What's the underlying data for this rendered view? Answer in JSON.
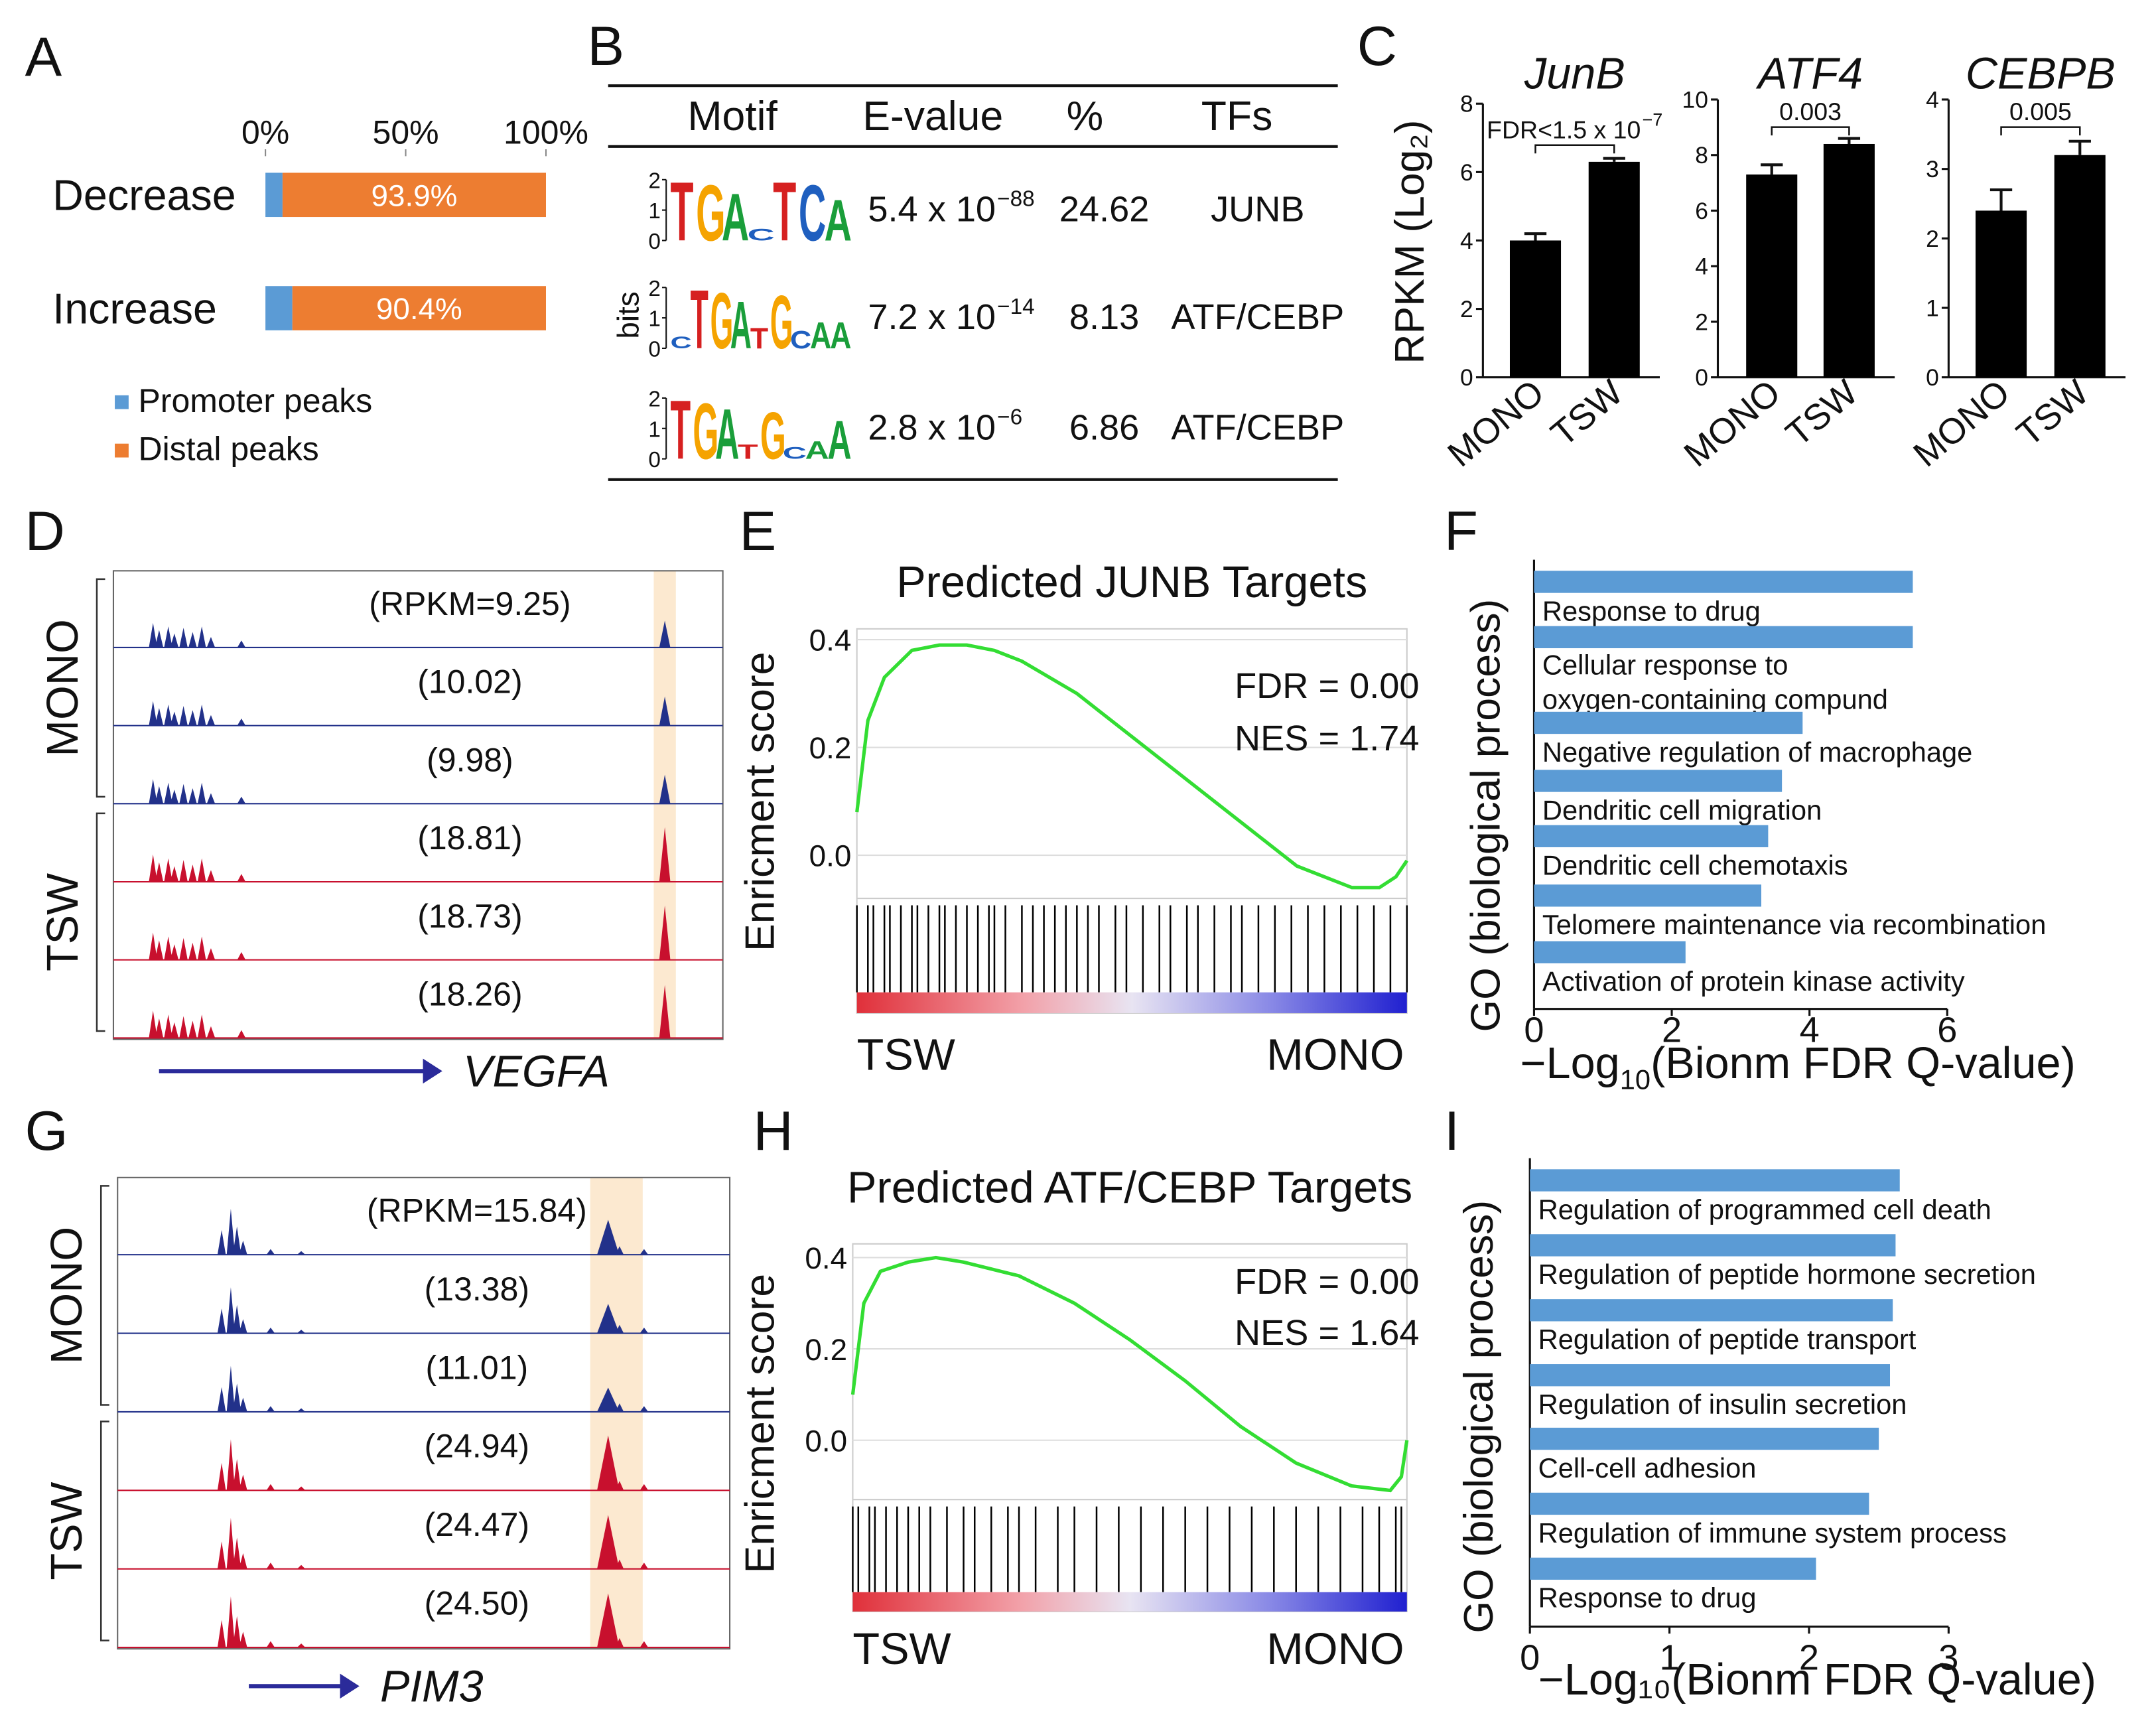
{
  "chart_data": [
    {
      "type": "stacked_barh",
      "panel": "A",
      "categories": [
        "Decrease",
        "Increase"
      ],
      "series": [
        {
          "name": "Promoter peaks",
          "color": "#5b9bd5",
          "values": [
            6.1,
            9.6
          ]
        },
        {
          "name": "Distal peaks",
          "color": "#ed7d31",
          "values": [
            93.9,
            90.4
          ],
          "value_labels": [
            "93.9%",
            "90.4%"
          ]
        }
      ],
      "xlim": [
        0,
        100
      ],
      "xticks": [
        {
          "value": 0,
          "label": "0%"
        },
        {
          "value": 50,
          "label": "50%"
        },
        {
          "value": 100,
          "label": "100%"
        }
      ]
    },
    {
      "type": "table",
      "panel": "B",
      "columns": [
        "Motif",
        "E-value",
        "%",
        "TFs"
      ],
      "logo_axis_label": "bits",
      "logo_ticks": [
        0,
        1,
        2
      ],
      "rows": [
        {
          "logo": [
            "T",
            "G",
            "A",
            "C",
            "T",
            "C",
            "A"
          ],
          "logo_bits": [
            2,
            1.9,
            1.6,
            0.4,
            2,
            1.9,
            1.4
          ],
          "evalue": "5.4 x 10",
          "evalue_exp": "−88",
          "percent": 24.62,
          "tf": "JUNB"
        },
        {
          "logo": [
            "C",
            "T",
            "G",
            "A",
            "T",
            "G",
            "C",
            "A",
            "A"
          ],
          "logo_bits": [
            0.4,
            2,
            1.9,
            1.6,
            0.7,
            1.8,
            0.6,
            0.9,
            0.9
          ],
          "evalue": "7.2 x 10",
          "evalue_exp": "−14",
          "percent": 8.13,
          "tf": "ATF/CEBP"
        },
        {
          "logo": [
            "T",
            "G",
            "A",
            "T",
            "G",
            "C",
            "A",
            "A"
          ],
          "logo_bits": [
            2,
            1.9,
            1.7,
            0.5,
            1.6,
            0.4,
            0.6,
            1.3
          ],
          "evalue": "2.8 x 10",
          "evalue_exp": "−6",
          "percent": 6.86,
          "tf": "ATF/CEBP"
        }
      ]
    },
    {
      "type": "bar",
      "panel": "C",
      "title": "JunB",
      "ylabel": "RPKM (Log₂)",
      "categories": [
        "MONO",
        "TSW"
      ],
      "values": [
        4.0,
        6.3
      ],
      "errors": [
        0.2,
        0.1
      ],
      "color": "#000000",
      "ylim": [
        0,
        8
      ],
      "yticks": [
        0,
        2,
        4,
        6,
        8
      ],
      "annotation": "FDR<1.5 x 10",
      "annotation_exp": "−7"
    },
    {
      "type": "bar",
      "title": "ATF4",
      "categories": [
        "MONO",
        "TSW"
      ],
      "values": [
        7.3,
        8.4
      ],
      "errors": [
        0.35,
        0.2
      ],
      "color": "#000000",
      "ylim": [
        0,
        10
      ],
      "yticks": [
        0,
        2,
        4,
        6,
        8,
        10
      ],
      "annotation": "0.003"
    },
    {
      "type": "bar",
      "title": "CEBPB",
      "categories": [
        "MONO",
        "TSW"
      ],
      "values": [
        2.4,
        3.2
      ],
      "errors": [
        0.3,
        0.2
      ],
      "color": "#000000",
      "ylim": [
        0,
        4
      ],
      "yticks": [
        0,
        1,
        2,
        3,
        4
      ],
      "annotation": "0.005"
    },
    {
      "type": "tracks",
      "panel": "D",
      "gene": "VEGFA",
      "groups": [
        {
          "name": "MONO",
          "color": "#22318a"
        },
        {
          "name": "TSW",
          "color": "#c8102e"
        }
      ],
      "track_groups": [
        0,
        0,
        0,
        1,
        1,
        1
      ],
      "values": [
        9.25,
        10.02,
        9.98,
        18.81,
        18.73,
        18.26
      ],
      "value_labels": [
        "(RPKM=9.25)",
        "(10.02)",
        "(9.98)",
        "(18.81)",
        "(18.73)",
        "(18.26)"
      ]
    },
    {
      "type": "gsea",
      "panel": "E",
      "title": "Predicted JUNB Targets",
      "ylabel": "Enricment score",
      "color": "#33dd33",
      "x": [
        0,
        0.02,
        0.05,
        0.1,
        0.15,
        0.2,
        0.25,
        0.3,
        0.4,
        0.5,
        0.6,
        0.7,
        0.75,
        0.8,
        0.85,
        0.9,
        0.95,
        0.98,
        1
      ],
      "values": [
        0.08,
        0.25,
        0.33,
        0.38,
        0.39,
        0.39,
        0.38,
        0.36,
        0.3,
        0.22,
        0.14,
        0.06,
        0.02,
        -0.02,
        -0.04,
        -0.06,
        -0.06,
        -0.04,
        -0.01
      ],
      "xlim": [
        0,
        1
      ],
      "ylim": [
        -0.08,
        0.42
      ],
      "yticks": [
        {
          "value": 0,
          "label": "0.0"
        },
        {
          "value": 0.2,
          "label": "0.2"
        },
        {
          "value": 0.4,
          "label": "0.4"
        }
      ],
      "hits": [
        0,
        0.02,
        0.03,
        0.05,
        0.06,
        0.08,
        0.1,
        0.11,
        0.13,
        0.15,
        0.16,
        0.18,
        0.2,
        0.22,
        0.24,
        0.25,
        0.27,
        0.3,
        0.32,
        0.34,
        0.36,
        0.38,
        0.4,
        0.42,
        0.44,
        0.47,
        0.49,
        0.52,
        0.55,
        0.57,
        0.6,
        0.62,
        0.65,
        0.68,
        0.7,
        0.73,
        0.76,
        0.79,
        0.82,
        0.85,
        0.88,
        0.91,
        0.94,
        0.97,
        1
      ],
      "annotations": [
        "FDR = 0.00",
        "NES = 1.74"
      ],
      "left_label": "TSW",
      "right_label": "MONO"
    },
    {
      "type": "barh",
      "panel": "F",
      "ylabel": "GO (biological process)",
      "xlabel": "−Log",
      "xlabel_sub": "10",
      "xlabel_end": "(Bionm FDR Q-value)",
      "categories": [
        "Response to drug",
        [
          "Cellular response to",
          "oxygen-containing compund"
        ],
        "Negative regulation of macrophage",
        "Dendritic cell migration",
        "Dendritic cell chemotaxis",
        "Telomere maintenance via recombination",
        "Activation of protein kinase activity"
      ],
      "values": [
        5.5,
        5.5,
        3.9,
        3.6,
        3.4,
        3.3,
        2.2
      ],
      "color": "#5b9bd5",
      "xlim": [
        0,
        6
      ],
      "xticks": [
        0,
        2,
        4,
        6
      ]
    },
    {
      "type": "tracks",
      "panel": "G",
      "gene": "PIM3",
      "groups": [
        {
          "name": "MONO",
          "color": "#22318a"
        },
        {
          "name": "TSW",
          "color": "#c8102e"
        }
      ],
      "track_groups": [
        0,
        0,
        0,
        1,
        1,
        1
      ],
      "values": [
        15.84,
        13.38,
        11.01,
        24.94,
        24.47,
        24.5
      ],
      "value_labels": [
        "(RPKM=15.84)",
        "(13.38)",
        "(11.01)",
        "(24.94)",
        "(24.47)",
        "(24.50)"
      ]
    },
    {
      "type": "gsea",
      "panel": "H",
      "title": "Predicted ATF/CEBP Targets",
      "ylabel": "Enricment score",
      "color": "#33dd33",
      "x": [
        0,
        0.02,
        0.05,
        0.1,
        0.15,
        0.2,
        0.3,
        0.4,
        0.5,
        0.6,
        0.7,
        0.8,
        0.9,
        0.97,
        0.99,
        1
      ],
      "values": [
        0.1,
        0.3,
        0.37,
        0.39,
        0.4,
        0.39,
        0.36,
        0.3,
        0.22,
        0.13,
        0.03,
        -0.05,
        -0.1,
        -0.11,
        -0.08,
        0
      ],
      "xlim": [
        0,
        1
      ],
      "ylim": [
        -0.13,
        0.43
      ],
      "yticks": [
        {
          "value": 0,
          "label": "0.0"
        },
        {
          "value": 0.2,
          "label": "0.2"
        },
        {
          "value": 0.4,
          "label": "0.4"
        }
      ],
      "hits": [
        0,
        0.01,
        0.03,
        0.04,
        0.06,
        0.08,
        0.1,
        0.12,
        0.14,
        0.17,
        0.2,
        0.22,
        0.25,
        0.28,
        0.3,
        0.33,
        0.37,
        0.4,
        0.44,
        0.48,
        0.52,
        0.56,
        0.6,
        0.64,
        0.68,
        0.72,
        0.76,
        0.8,
        0.84,
        0.88,
        0.92,
        0.95,
        0.98,
        0.99
      ],
      "annotations": [
        "FDR = 0.00",
        "NES = 1.64"
      ],
      "left_label": "TSW",
      "right_label": "MONO"
    },
    {
      "type": "barh",
      "panel": "I",
      "ylabel": "GO (biological process)",
      "xlabel": "−Log₁₀(Bionm FDR Q-value)",
      "categories": [
        "Regulation of programmed cell death",
        "Regulation of peptide hormone secretion",
        "Regulation of peptide transport",
        "Regulation of insulin secretion",
        "Cell-cell adhesion",
        "Regulation of immune system process",
        "Response to drug"
      ],
      "values": [
        2.65,
        2.62,
        2.6,
        2.58,
        2.5,
        2.43,
        2.05
      ],
      "color": "#5b9bd5",
      "xlim": [
        0,
        3
      ],
      "xticks": [
        0,
        1,
        2,
        3
      ]
    }
  ]
}
